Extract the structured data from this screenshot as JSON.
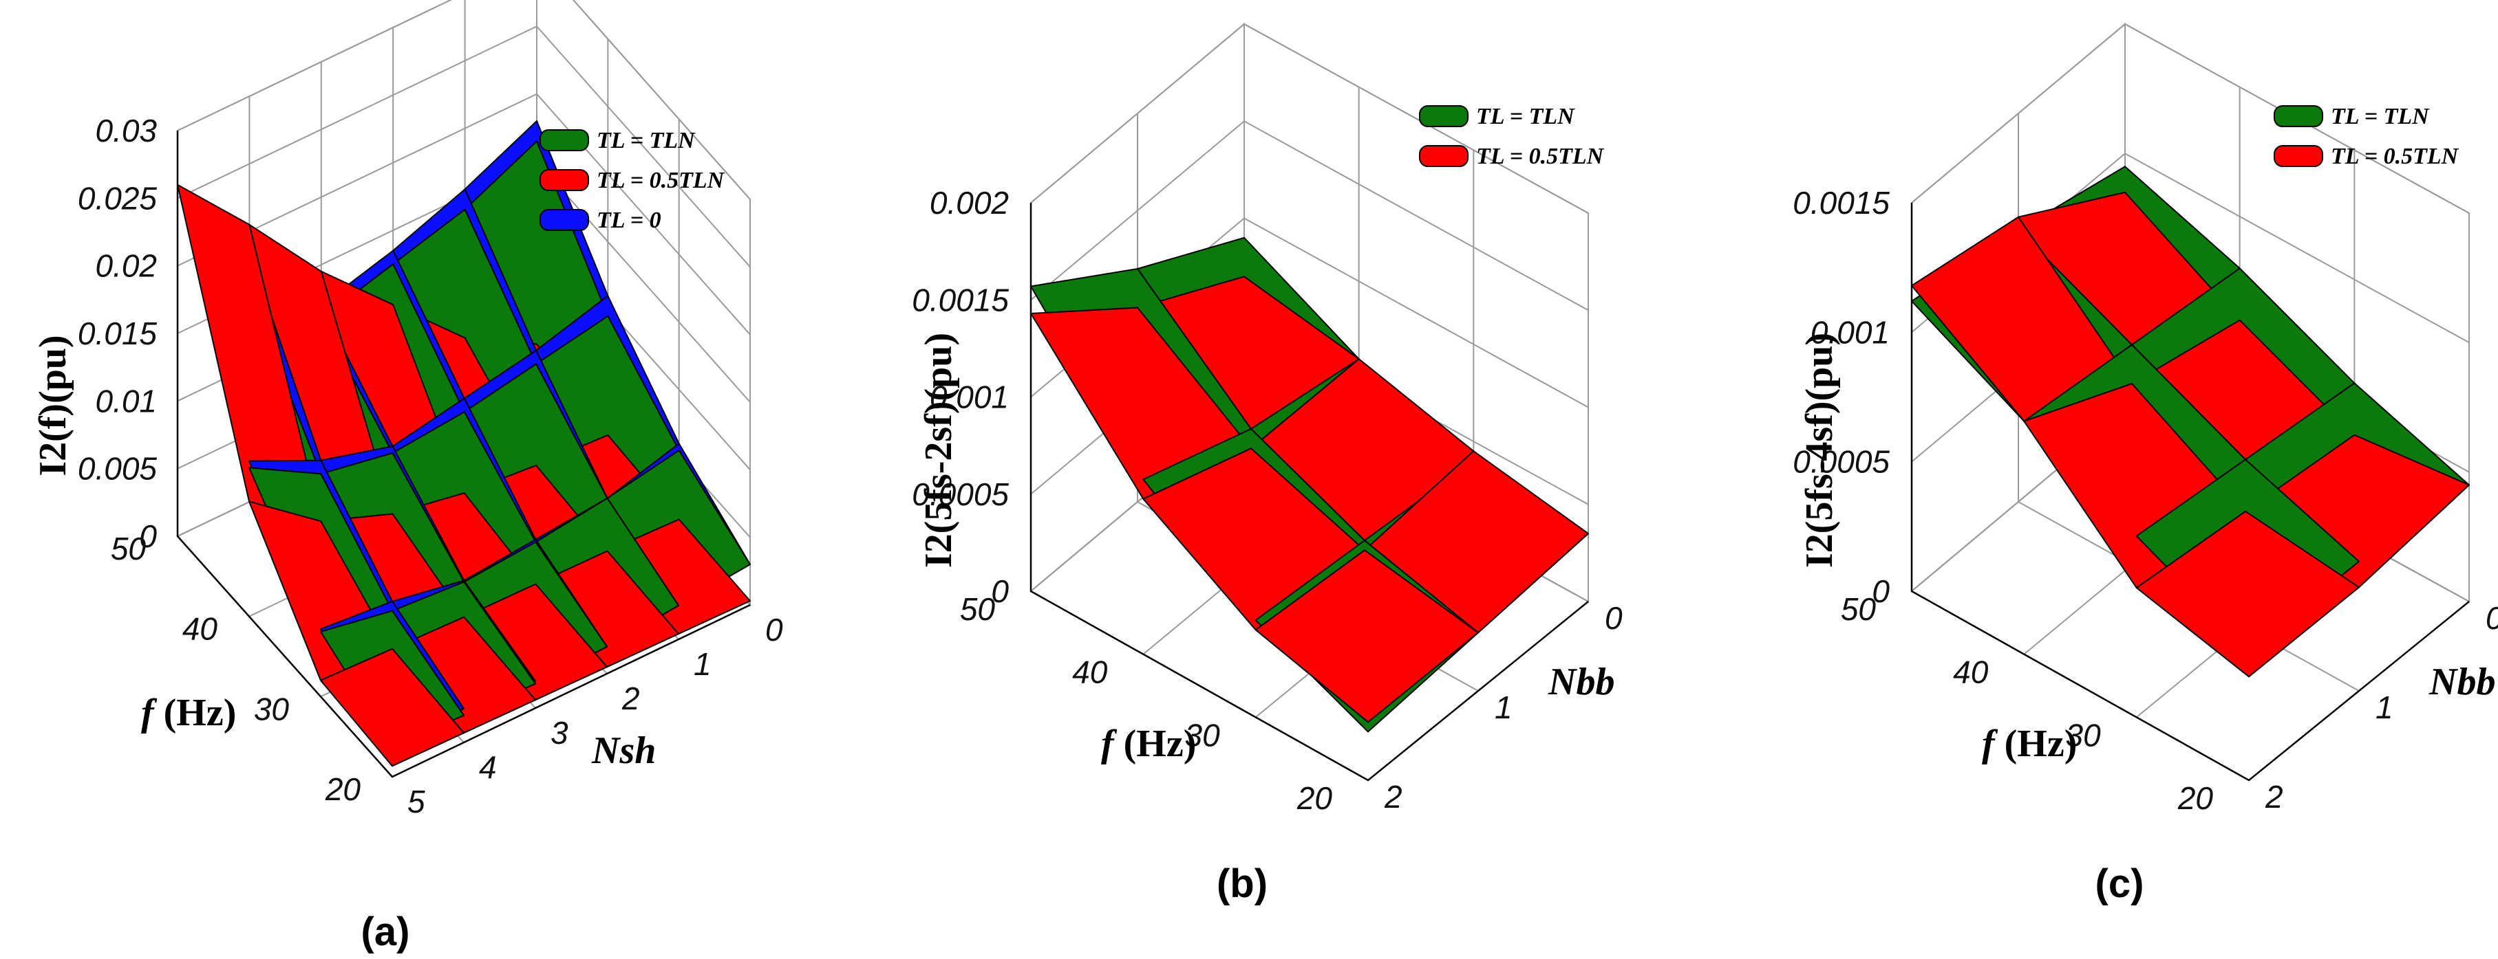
{
  "colors": {
    "green": "#0b7a0b",
    "red": "#ff0000",
    "blue": "#0a10ff",
    "grid": "#9a9a9a",
    "edge": "#000000"
  },
  "chart_data": [
    {
      "type": "surface3d",
      "panel_label": "(a)",
      "zlabel": "I2(f)(pu)",
      "zlim": [
        0,
        0.03
      ],
      "z_ticks": [
        "0",
        "0.005",
        "0.01",
        "0.015",
        "0.02",
        "0.025",
        "0.03"
      ],
      "xlabel": "f (Hz)",
      "x_ticks": [
        "50",
        "40",
        "30",
        "20"
      ],
      "ylabel": "Nsh",
      "y_ticks": [
        "5",
        "4",
        "3",
        "2",
        "1",
        "0"
      ],
      "f_values": [
        50,
        40,
        30,
        20
      ],
      "n_values": [
        0,
        1,
        2,
        3,
        4,
        5
      ],
      "legend": [
        {
          "label": "TL = TLN",
          "color": "green"
        },
        {
          "label": "TL = 0.5TLN",
          "color": "red"
        },
        {
          "label": "TL = 0",
          "color": "blue"
        }
      ],
      "series": [
        {
          "name": "TL = 0",
          "color": "blue",
          "values": [
            [
              0.018,
              0.0155,
              0.0135,
              0.012,
              0.0185,
              0.026
            ],
            [
              0.011,
              0.0095,
              0.0085,
              0.0075,
              0.009,
              0.0115
            ],
            [
              0.006,
              0.0045,
              0.004,
              0.0035,
              0.0045,
              0.005
            ],
            [
              0.003,
              0.0025,
              0.002,
              0.002,
              0.0025,
              0.0025
            ]
          ]
        },
        {
          "name": "TL = TLN",
          "color": "green",
          "values": [
            [
              0.0165,
              0.014,
              0.0125,
              0.011,
              0.0155,
              0.026
            ],
            [
              0.0095,
              0.0085,
              0.0075,
              0.007,
              0.008,
              0.011
            ],
            [
              0.0055,
              0.0045,
              0.0038,
              0.0034,
              0.0038,
              0.0048
            ],
            [
              0.003,
              0.0025,
              0.002,
              0.0018,
              0.002,
              0.0023
            ]
          ]
        },
        {
          "name": "TL = 0.5TLN",
          "color": "red",
          "values": [
            [
              0.0015,
              0.0045,
              0.0095,
              0.0145,
              0.0205,
              0.026
            ],
            [
              0.0007,
              0.001,
              0.0015,
              0.0025,
              0.0045,
              0.0085
            ],
            [
              0.0004,
              0.0006,
              0.0007,
              0.0008,
              0.001,
              0.0012
            ],
            [
              0.0003,
              0.0004,
              0.0005,
              0.0006,
              0.0007,
              0.0008
            ]
          ]
        }
      ]
    },
    {
      "type": "surface3d",
      "panel_label": "(b)",
      "zlabel": "I2(5fs-2sf)(pu)",
      "zlim": [
        0,
        0.002
      ],
      "z_ticks": [
        "0",
        "0.0005",
        "0.001",
        "0.0015",
        "0.002"
      ],
      "xlabel": "f (Hz)",
      "x_ticks": [
        "50",
        "40",
        "30",
        "20"
      ],
      "ylabel": "Nbb",
      "y_ticks": [
        "2",
        "1",
        "0"
      ],
      "f_values": [
        50,
        40,
        30,
        20
      ],
      "n_values": [
        0,
        1,
        2
      ],
      "legend": [
        {
          "label": "TL = TLN",
          "color": "green"
        },
        {
          "label": "TL = 0.5TLN",
          "color": "red"
        }
      ],
      "series": [
        {
          "name": "TL = TLN",
          "color": "green",
          "values": [
            [
              0.0009,
              0.0012,
              0.00157
            ],
            [
              0.0006,
              0.0007,
              0.0009
            ],
            [
              0.0004,
              0.00045,
              0.0005
            ],
            [
              0.00035,
              0.0003,
              0.00025
            ]
          ]
        },
        {
          "name": "TL = 0.5TLN",
          "color": "red",
          "values": [
            [
              0.0007,
              0.001,
              0.00143
            ],
            [
              0.0006,
              0.0006,
              0.0008
            ],
            [
              0.00045,
              0.0004,
              0.00045
            ],
            [
              0.00035,
              0.0003,
              0.0003
            ]
          ]
        }
      ]
    },
    {
      "type": "surface3d",
      "panel_label": "(c)",
      "zlabel": "I2(5fs-4sf)(pu)",
      "zlim": [
        0,
        0.0015
      ],
      "z_ticks": [
        "0",
        "0.0005",
        "0.001",
        "0.0015"
      ],
      "xlabel": "f (Hz)",
      "x_ticks": [
        "50",
        "40",
        "30",
        "20"
      ],
      "ylabel": "Nbb",
      "y_ticks": [
        "2",
        "1",
        "0"
      ],
      "f_values": [
        50,
        40,
        30,
        20
      ],
      "n_values": [
        0,
        1,
        2
      ],
      "legend": [
        {
          "label": "TL = TLN",
          "color": "green"
        },
        {
          "label": "TL = 0.5TLN",
          "color": "red"
        }
      ],
      "series": [
        {
          "name": "TL = TLN",
          "color": "green",
          "values": [
            [
              0.00095,
              0.00105,
              0.00112
            ],
            [
              0.0008,
              0.00085,
              0.0009
            ],
            [
              0.0006,
              0.00065,
              0.0007
            ],
            [
              0.00045,
              0.0005,
              0.0005
            ]
          ]
        },
        {
          "name": "TL = 0.5TLN",
          "color": "red",
          "values": [
            [
              0.00085,
              0.0011,
              0.00118
            ],
            [
              0.0006,
              0.0007,
              0.0009
            ],
            [
              0.0004,
              0.00045,
              0.0005
            ],
            [
              0.00045,
              0.0004,
              0.0004
            ]
          ]
        }
      ]
    }
  ]
}
